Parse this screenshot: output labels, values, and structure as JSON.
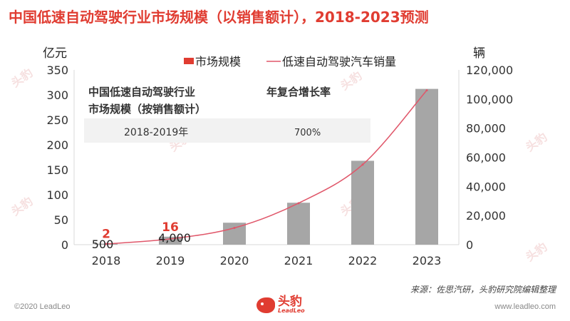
{
  "page": {
    "title": "中国低速自动驾驶行业市场规模（以销售额计），2018-2023预测",
    "source": "来源：佐思汽研，头豹研究院编辑整理",
    "copyright": "©2020 LeadLeo",
    "website": "www.leadleo.com",
    "logo_cn": "头豹",
    "logo_en": "LeadLeo",
    "watermark": "头豹"
  },
  "colors": {
    "title": "#e03c31",
    "bar": "#a6a6a6",
    "line": "#e0576a",
    "highlight": "#e03c31"
  },
  "chart_data": {
    "type": "bar",
    "categories": [
      "2018",
      "2019",
      "2020",
      "2021",
      "2022",
      "2023"
    ],
    "series": [
      {
        "name": "市场规模",
        "type": "bar",
        "axis": "left",
        "values": [
          2,
          16,
          44,
          84,
          168,
          312
        ]
      },
      {
        "name": "低速自动驾驶汽车销量",
        "type": "line",
        "axis": "right",
        "values": [
          500,
          4000,
          11500,
          28500,
          55000,
          106000
        ]
      }
    ],
    "left_axis": {
      "label": "亿元",
      "min": 0,
      "max": 350,
      "ticks": [
        "0",
        "50",
        "100",
        "150",
        "200",
        "250",
        "300",
        "350"
      ]
    },
    "right_axis": {
      "label": "辆",
      "min": 0,
      "max": 120000,
      "ticks": [
        "0",
        "20,000",
        "40,000",
        "60,000",
        "80,000",
        "100,000",
        "120,000"
      ]
    },
    "bar_labels": [
      {
        "index": 0,
        "text": "2"
      },
      {
        "index": 1,
        "text": "16"
      }
    ],
    "line_labels": [
      {
        "index": 0,
        "text": "500"
      },
      {
        "index": 1,
        "text": "4,000"
      }
    ],
    "legend": {
      "position": "top",
      "items": [
        "市场规模",
        "低速自动驾驶汽车销量"
      ]
    },
    "inset_table": {
      "header_left": "中国低速自动驾驶行业市场规模（按销售额计）",
      "header_right": "年复合增长率",
      "row_left": "2018-2019年",
      "row_right": "700%"
    }
  }
}
